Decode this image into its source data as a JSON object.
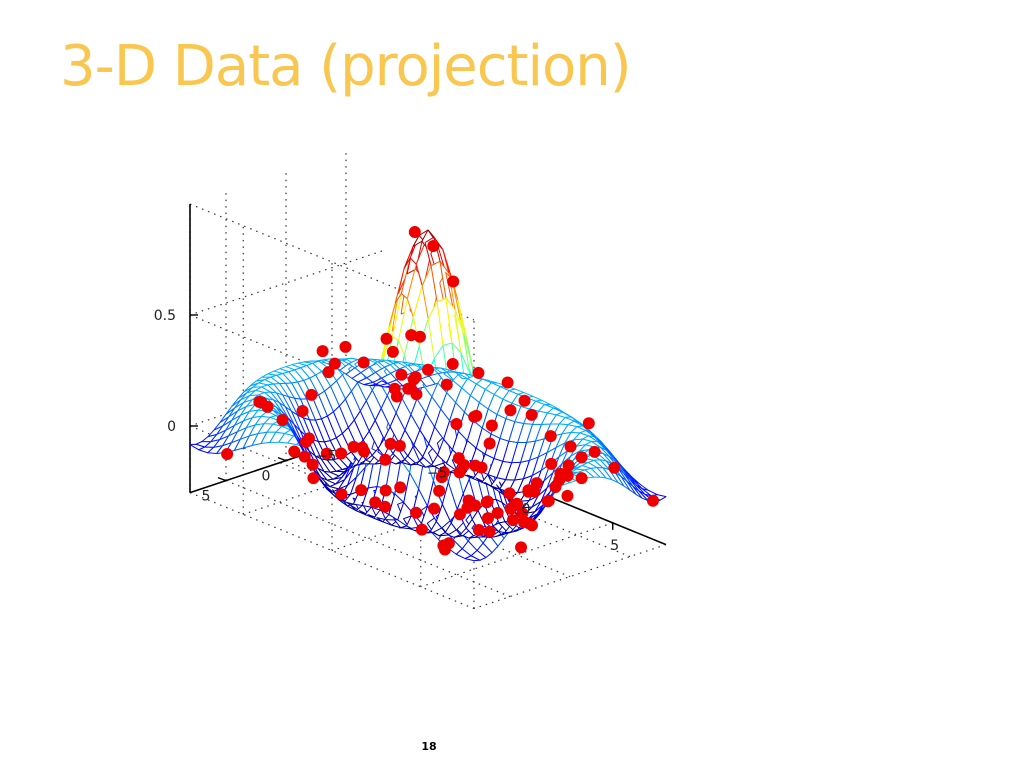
{
  "slide": {
    "title": "3-D Data (projection)",
    "page_number": "18"
  },
  "colors": {
    "title": "#F9C74F",
    "points": "#EE0000",
    "axes": "#000000",
    "colormap": "jet"
  },
  "chart_data": {
    "type": "surface",
    "surface": {
      "function": "sin(r)/r",
      "x_range": [
        -8,
        8
      ],
      "y_range": [
        -8,
        8
      ],
      "grid_spacing": 0.5,
      "style": "mesh"
    },
    "scatter": {
      "description": "noisy samples of the surface",
      "count": 115
    },
    "axes": {
      "x": {
        "ticks": [
          -5,
          0,
          5
        ],
        "tick_labels": [
          "−5",
          "0",
          "5"
        ],
        "range": [
          -8,
          8
        ]
      },
      "y": {
        "ticks": [
          -5,
          0,
          5
        ],
        "tick_labels": [
          "−5",
          "0",
          "5"
        ],
        "range": [
          -8,
          8
        ]
      },
      "z": {
        "ticks": [
          0,
          0.5
        ],
        "tick_labels": [
          "0",
          "0.5"
        ],
        "range": [
          -0.3,
          1.0
        ]
      }
    },
    "grid": true,
    "view": "azimuth -37.5, elevation 30",
    "title": "",
    "xlabel": "",
    "ylabel": "",
    "zlabel": ""
  }
}
